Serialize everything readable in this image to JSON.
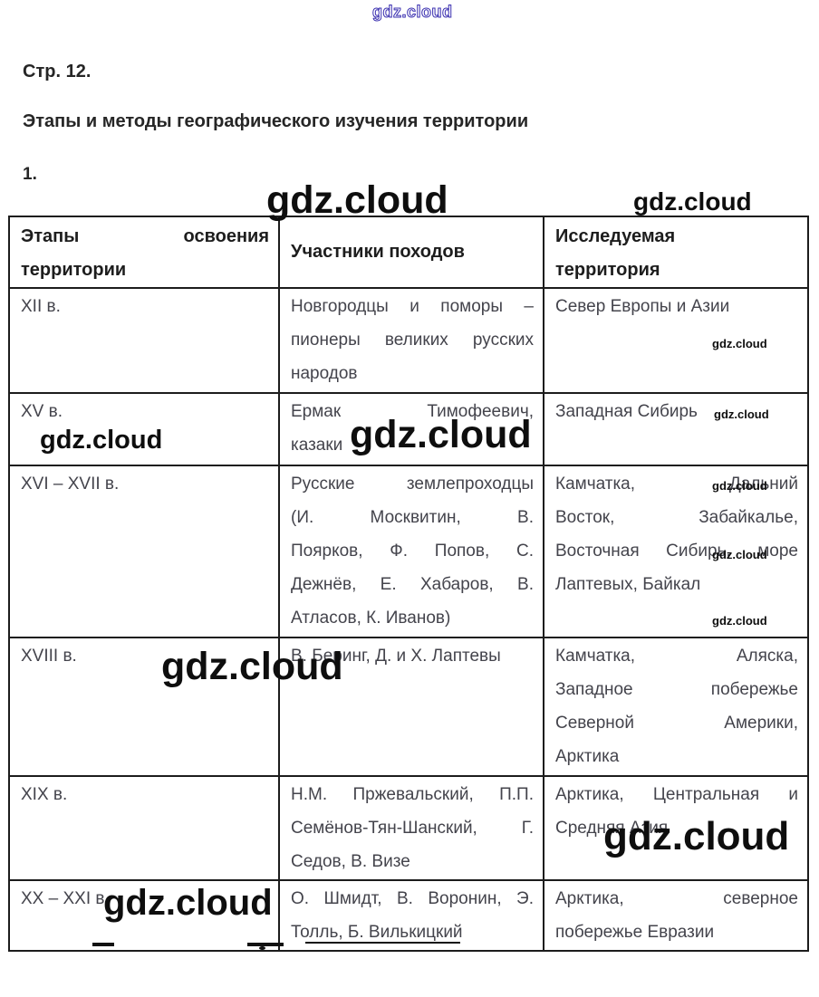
{
  "watermark": {
    "text": "gdz.cloud"
  },
  "colors": {
    "watermark_outline_blue": "#3a2fb0",
    "watermark_black": "#0e0e0e",
    "body_text": "#44444c",
    "heading_text": "#262626",
    "table_border": "#1c1c1c"
  },
  "page": {
    "page_label": "Стр. 12.",
    "title": "Этапы и методы географического изучения территории",
    "item_number": "1."
  },
  "table": {
    "columns": [
      {
        "header_lines": [
          "Этапы освоения",
          "территории"
        ]
      },
      {
        "header_lines": [
          "Участники походов"
        ]
      },
      {
        "header_lines": [
          "Исследуемая",
          "территория"
        ]
      }
    ],
    "rows": [
      {
        "period": "XII в.",
        "participants": [
          "Новгородцы и поморы –",
          "пионеры великих русских",
          "народов"
        ],
        "territory": [
          "Север Европы и Азии"
        ]
      },
      {
        "period": "XV в.",
        "participants": [
          "Ермак Тимофеевич,",
          "казаки"
        ],
        "territory": [
          "Западная Сибирь"
        ]
      },
      {
        "period": "XVI – XVII в.",
        "participants": [
          "Русские землепроходцы",
          "(И. Москвитин, В.",
          "Поярков, Ф. Попов, С.",
          "Дежнёв, Е. Хабаров, В.",
          "Атласов, К. Иванов)"
        ],
        "territory": [
          "Камчатка, Дальний",
          "Восток, Забайкалье,",
          "Восточная Сибирь, море",
          "Лаптевых, Байкал"
        ]
      },
      {
        "period": "XVIII в.",
        "participants": [
          "В. Беринг, Д. и Х. Лаптевы"
        ],
        "territory": [
          "Камчатка, Аляска,",
          "Западное побережье",
          "Северной Америки,",
          "Арктика"
        ]
      },
      {
        "period": "XIX в.",
        "participants": [
          "Н.М. Пржевальский, П.П.",
          "Семёнов-Тян-Шанский, Г.",
          "Седов, В. Визе"
        ],
        "territory": [
          "Арктика, Центральная и",
          "Средняя Азия"
        ]
      },
      {
        "period": "XX – XXI в.",
        "participants": [
          "О. Шмидт, В. Воронин, Э.",
          "Толль, Б. Вилькицкий"
        ],
        "territory": [
          "Арктика, северное",
          "побережье Евразии"
        ]
      }
    ]
  }
}
